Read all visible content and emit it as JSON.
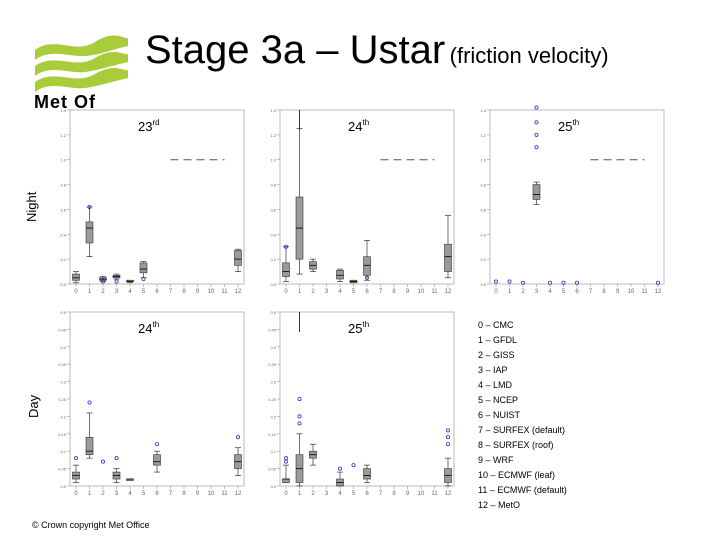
{
  "header": {
    "title_main": "Stage 3a – Ustar",
    "title_sub": "(friction velocity)",
    "logo_text": "Met Of"
  },
  "rows": {
    "night": "Night",
    "day": "Day"
  },
  "colors": {
    "box_fill": "#9a9a9a",
    "outlier": "#3333cc",
    "dash": "#555555"
  },
  "panels": [
    {
      "id": "night-23",
      "row": "night",
      "label_base": "23",
      "label_sup": "rd",
      "y_ticks": [
        "1.4",
        "1.2",
        "1.0",
        "0.8",
        "0.6",
        "0.4",
        "0.2",
        "0.0"
      ],
      "x_ticks": [
        "0",
        "1",
        "2",
        "3",
        "4",
        "5",
        "6",
        "7",
        "8",
        "9",
        "10",
        "11",
        "12"
      ],
      "boxes": [
        {
          "x": 0,
          "q1": 0.03,
          "med": 0.05,
          "q3": 0.08,
          "lo": 0.01,
          "hi": 0.1
        },
        {
          "x": 1,
          "q1": 0.33,
          "med": 0.45,
          "q3": 0.5,
          "lo": 0.22,
          "hi": 0.62
        },
        {
          "x": 2,
          "q1": 0.03,
          "med": 0.04,
          "q3": 0.05,
          "lo": 0.02,
          "hi": 0.06
        },
        {
          "x": 3,
          "q1": 0.05,
          "med": 0.06,
          "q3": 0.07,
          "lo": 0.04,
          "hi": 0.08
        },
        {
          "x": 4,
          "q1": 0.02,
          "med": 0.02,
          "q3": 0.03,
          "lo": 0.01,
          "hi": 0.03
        },
        {
          "x": 5,
          "q1": 0.09,
          "med": 0.12,
          "q3": 0.17,
          "lo": 0.05,
          "hi": 0.18
        },
        {
          "x": 12,
          "q1": 0.15,
          "med": 0.2,
          "q3": 0.27,
          "lo": 0.1,
          "hi": 0.28
        }
      ],
      "outliers": [
        [
          1,
          0.62
        ],
        [
          2,
          0.02
        ],
        [
          5,
          0.04
        ],
        [
          3,
          0.02
        ]
      ],
      "dash_y": 1.0,
      "dash_from": 7,
      "dash_to": 11
    },
    {
      "id": "night-24",
      "row": "night",
      "label_base": "24",
      "label_sup": "th",
      "y_ticks": [
        "1.4",
        "1.2",
        "1.0",
        "0.8",
        "0.6",
        "0.4",
        "0.2",
        "0.0"
      ],
      "x_ticks": [
        "0",
        "1",
        "2",
        "3",
        "4",
        "5",
        "6",
        "7",
        "8",
        "9",
        "10",
        "11",
        "12"
      ],
      "boxes": [
        {
          "x": 0,
          "q1": 0.06,
          "med": 0.1,
          "q3": 0.17,
          "lo": 0.02,
          "hi": 0.3
        },
        {
          "x": 1,
          "q1": 0.2,
          "med": 0.45,
          "q3": 0.7,
          "lo": 0.08,
          "hi": 1.25
        },
        {
          "x": 2,
          "q1": 0.12,
          "med": 0.15,
          "q3": 0.18,
          "lo": 0.1,
          "hi": 0.2
        },
        {
          "x": 4,
          "q1": 0.04,
          "med": 0.07,
          "q3": 0.11,
          "lo": 0.02,
          "hi": 0.12
        },
        {
          "x": 5,
          "q1": 0.01,
          "med": 0.02,
          "q3": 0.03,
          "lo": 0.01,
          "hi": 0.03
        },
        {
          "x": 6,
          "q1": 0.07,
          "med": 0.15,
          "q3": 0.22,
          "lo": 0.03,
          "hi": 0.35
        },
        {
          "x": 12,
          "q1": 0.1,
          "med": 0.22,
          "q3": 0.32,
          "lo": 0.05,
          "hi": 0.55
        }
      ],
      "outliers": [
        [
          0,
          0.3
        ],
        [
          6,
          0.05
        ]
      ],
      "dash_y": 1.0,
      "dash_from": 7,
      "dash_to": 11,
      "top_line": 1
    },
    {
      "id": "night-25",
      "row": "night",
      "label_base": "25",
      "label_sup": "th",
      "y_ticks": [
        "1.4",
        "1.2",
        "1.0",
        "0.8",
        "0.6",
        "0.4",
        "0.2",
        "0.0"
      ],
      "x_ticks": [
        "0",
        "1",
        "2",
        "3",
        "4",
        "5",
        "6",
        "7",
        "8",
        "9",
        "10",
        "11",
        "12"
      ],
      "boxes": [
        {
          "x": 3,
          "q1": 0.68,
          "med": 0.72,
          "q3": 0.8,
          "lo": 0.64,
          "hi": 0.82
        }
      ],
      "outliers": [
        [
          3,
          1.48
        ],
        [
          3,
          1.42
        ],
        [
          3,
          1.3
        ],
        [
          3,
          1.2
        ],
        [
          3,
          1.1
        ],
        [
          0,
          0.02
        ],
        [
          1,
          0.02
        ],
        [
          2,
          0.01
        ],
        [
          4,
          0.01
        ],
        [
          5,
          0.01
        ],
        [
          6,
          0.01
        ],
        [
          12,
          0.01
        ]
      ],
      "dash_y": 1.0,
      "dash_from": 7,
      "dash_to": 11
    },
    {
      "id": "day-24",
      "row": "day",
      "label_base": "24",
      "label_sup": "th",
      "y_ticks": [
        "0.5",
        "0.45",
        "0.4",
        "0.35",
        "0.3",
        "0.25",
        "0.2",
        "0.15",
        "0.1",
        "0.05",
        "0.0"
      ],
      "x_ticks": [
        "0",
        "1",
        "2",
        "3",
        "4",
        "5",
        "6",
        "7",
        "8",
        "9",
        "10",
        "11",
        "12"
      ],
      "boxes": [
        {
          "x": 0,
          "q1": 0.02,
          "med": 0.03,
          "q3": 0.04,
          "lo": 0.01,
          "hi": 0.06
        },
        {
          "x": 1,
          "q1": 0.09,
          "med": 0.1,
          "q3": 0.14,
          "lo": 0.08,
          "hi": 0.21
        },
        {
          "x": 3,
          "q1": 0.02,
          "med": 0.03,
          "q3": 0.04,
          "lo": 0.01,
          "hi": 0.05
        },
        {
          "x": 4,
          "q1": 0.02,
          "med": 0.02,
          "q3": 0.02,
          "lo": 0.02,
          "hi": 0.02
        },
        {
          "x": 6,
          "q1": 0.06,
          "med": 0.07,
          "q3": 0.09,
          "lo": 0.04,
          "hi": 0.1
        },
        {
          "x": 12,
          "q1": 0.05,
          "med": 0.07,
          "q3": 0.09,
          "lo": 0.03,
          "hi": 0.11
        }
      ],
      "outliers": [
        [
          0,
          0.08
        ],
        [
          1,
          0.24
        ],
        [
          2,
          0.07
        ],
        [
          3,
          0.08
        ],
        [
          6,
          0.12
        ],
        [
          12,
          0.14
        ]
      ],
      "dash_y": null
    },
    {
      "id": "day-25",
      "row": "day",
      "label_base": "25",
      "label_sup": "th",
      "y_ticks": [
        "0.5",
        "0.45",
        "0.4",
        "0.35",
        "0.3",
        "0.25",
        "0.2",
        "0.15",
        "0.1",
        "0.05",
        "0.0"
      ],
      "x_ticks": [
        "0",
        "1",
        "2",
        "3",
        "4",
        "5",
        "6",
        "7",
        "8",
        "9",
        "10",
        "11",
        "12"
      ],
      "boxes": [
        {
          "x": 0,
          "q1": 0.01,
          "med": 0.02,
          "q3": 0.02,
          "lo": 0.01,
          "hi": 0.06
        },
        {
          "x": 1,
          "q1": 0.01,
          "med": 0.05,
          "q3": 0.09,
          "lo": 0.0,
          "hi": 0.15
        },
        {
          "x": 2,
          "q1": 0.08,
          "med": 0.09,
          "q3": 0.1,
          "lo": 0.06,
          "hi": 0.12
        },
        {
          "x": 4,
          "q1": 0.0,
          "med": 0.01,
          "q3": 0.02,
          "lo": 0.0,
          "hi": 0.04
        },
        {
          "x": 6,
          "q1": 0.02,
          "med": 0.03,
          "q3": 0.05,
          "lo": 0.01,
          "hi": 0.06
        },
        {
          "x": 12,
          "q1": 0.01,
          "med": 0.03,
          "q3": 0.05,
          "lo": 0.0,
          "hi": 0.08
        }
      ],
      "outliers": [
        [
          0,
          0.07
        ],
        [
          0,
          0.08
        ],
        [
          1,
          0.25
        ],
        [
          1,
          0.2
        ],
        [
          1,
          0.18
        ],
        [
          4,
          0.05
        ],
        [
          5,
          0.06
        ],
        [
          12,
          0.12
        ],
        [
          12,
          0.14
        ],
        [
          12,
          0.16
        ]
      ],
      "dash_y": null,
      "top_line": 1
    }
  ],
  "legend": [
    "0 – CMC",
    "1 – GFDL",
    "2 – GISS",
    "3 – IAP",
    "4 – LMD",
    "5 – NCEP",
    "6 – NUIST",
    "7 – SURFEX (default)",
    "8 – SURFEX (roof)",
    "9 – WRF",
    "10 – ECMWF (leaf)",
    "11 – ECMWF (default)",
    "12 – MetO"
  ],
  "footer": {
    "copyright": "© Crown copyright   Met Office"
  }
}
